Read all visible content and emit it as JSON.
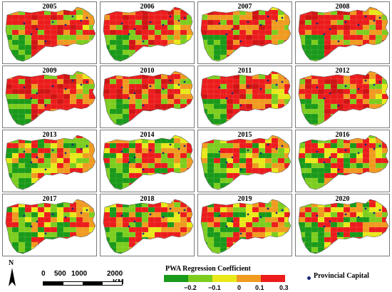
{
  "years": [
    "2005",
    "2006",
    "2007",
    "2008",
    "2009",
    "2010",
    "2011",
    "2012",
    "2013",
    "2014",
    "2015",
    "2016",
    "2017",
    "2018",
    "2019",
    "2020"
  ],
  "legend": {
    "title": "PWA Regression Coefficient",
    "ticks": [
      "−0.2",
      "−0.1",
      "0",
      "0.1",
      "0.3"
    ],
    "colors": [
      "#1a9a1a",
      "#7ccd1e",
      "#e8e81a",
      "#f09a20",
      "#ec1c1c"
    ]
  },
  "north_arrow_label": "N",
  "scale_bar": {
    "ticks": [
      "0",
      "500",
      "1000",
      "2000"
    ],
    "unit": "KM"
  },
  "point_legend": {
    "label": "Provincial Capital",
    "color": "#1a2a7a"
  },
  "region_colors": [
    "#1a9a1a",
    "#7ccd1e",
    "#e8e81a",
    "#f09a20",
    "#ec1c1c",
    "#d01414"
  ]
}
